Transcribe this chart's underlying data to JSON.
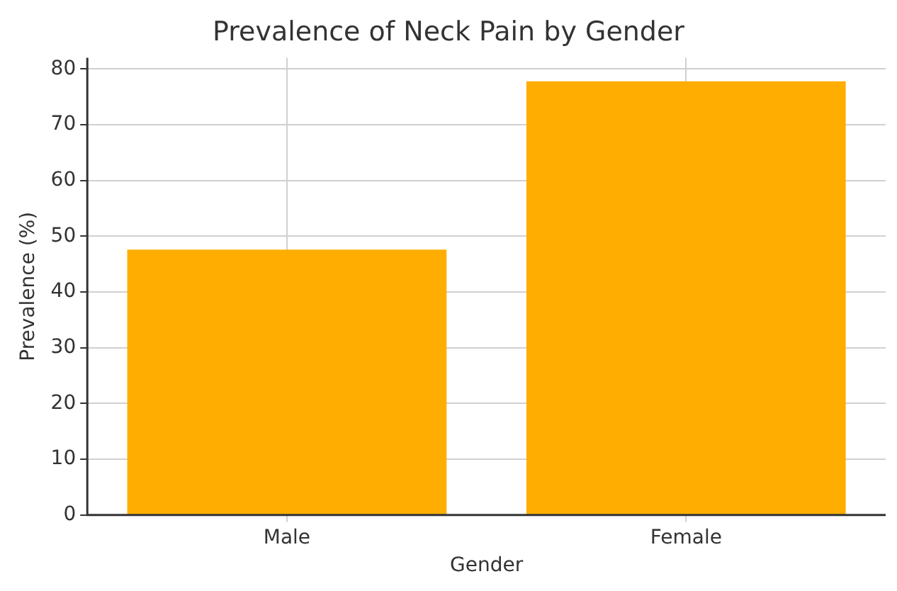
{
  "chart_data": {
    "type": "bar",
    "title": "Prevalence of Neck Pain by Gender",
    "xlabel": "Gender",
    "ylabel": "Prevalence (%)",
    "categories": [
      "Male",
      "Female"
    ],
    "values": [
      47.6,
      77.8
    ],
    "color": "#ffad00",
    "ylim": [
      0,
      82
    ],
    "yticks": [
      0,
      10,
      20,
      30,
      40,
      50,
      60,
      70,
      80
    ],
    "grid": true
  }
}
